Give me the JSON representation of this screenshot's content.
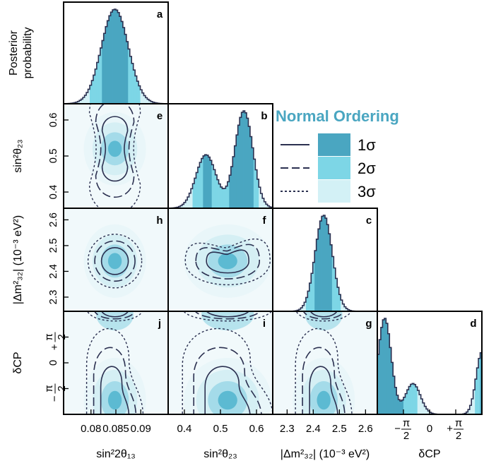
{
  "chart_data": {
    "type": "corner",
    "legend": {
      "title": "Normal Ordering",
      "entries": [
        {
          "label": "1σ",
          "line": "solid",
          "color": "#4aa6c1"
        },
        {
          "label": "2σ",
          "line": "dashed",
          "color": "#7dd6e6"
        },
        {
          "label": "3σ",
          "line": "dotted",
          "color": "#d3f1f6"
        }
      ],
      "placement": "top-right"
    },
    "ylabel_1d": "Posterior probability",
    "parameters": [
      {
        "key": "s13",
        "label": "sin²2θ₁₃",
        "ylabel": "",
        "ticks": [
          0.08,
          0.085,
          0.09
        ],
        "tick_labels": [
          "0.08",
          "0.085",
          "0.09"
        ],
        "range": [
          0.0745,
          0.0955
        ]
      },
      {
        "key": "s23",
        "label": "sin²θ₂₃",
        "ylabel": "sin²θ₂₃",
        "ticks": [
          0.4,
          0.5,
          0.6
        ],
        "tick_labels": [
          "0.4",
          "0.5",
          "0.6"
        ],
        "range": [
          0.355,
          0.645
        ]
      },
      {
        "key": "dm",
        "label": "|Δm²₃₂| (10⁻³ eV²)",
        "ylabel": "|Δm²₃₂| (10⁻³ eV²)",
        "ticks": [
          2.3,
          2.4,
          2.5,
          2.6
        ],
        "tick_labels": [
          "2.3",
          "2.4",
          "2.5",
          "2.6"
        ],
        "range": [
          2.245,
          2.645
        ]
      },
      {
        "key": "dcp",
        "label": "δCP",
        "ylabel": "δCP",
        "ticks": [
          -1.5708,
          0,
          1.5708
        ],
        "tick_labels": [
          "−π/2",
          "0",
          "+π/2"
        ],
        "range": [
          -3.1416,
          3.1416
        ]
      }
    ],
    "panels_1d": [
      {
        "label": "a",
        "param": "s13",
        "mean": 0.0848,
        "sigma": 0.0027,
        "interval_1s": [
          0.0822,
          0.0874
        ],
        "interval_2s": [
          0.0797,
          0.0899
        ]
      },
      {
        "label": "b",
        "param": "s23",
        "bimodal": [
          {
            "mu": 0.46,
            "sd": 0.028,
            "w": 0.55
          },
          {
            "mu": 0.565,
            "sd": 0.025,
            "w": 1.0
          }
        ],
        "interval_1s": [
          [
            0.45,
            0.477
          ],
          [
            0.522,
            0.592
          ]
        ],
        "interval_2s": [
          0.425,
          0.605
        ]
      },
      {
        "label": "c",
        "param": "dm",
        "mean": 2.44,
        "sigma": 0.033,
        "interval_1s": [
          2.407,
          2.473
        ],
        "interval_2s": [
          2.375,
          2.505
        ]
      },
      {
        "label": "d",
        "param": "dcp",
        "modes": [
          {
            "mu": -2.7,
            "sd": 0.4,
            "w": 1.0
          },
          {
            "mu": -1.0,
            "sd": 0.45,
            "w": 0.32
          },
          {
            "mu": 3.15,
            "sd": 0.35,
            "w": 0.65
          }
        ],
        "interval_1s": [
          [
            -3.1416,
            -1.6
          ],
          [
            3.0,
            3.1416
          ]
        ],
        "interval_2s": [
          [
            -3.1416,
            -0.7
          ],
          [
            2.75,
            3.1416
          ]
        ]
      }
    ],
    "panels_2d": [
      {
        "label": "e",
        "x": "s13",
        "y": "s23",
        "center": [
          0.0848,
          0.52
        ]
      },
      {
        "label": "h",
        "x": "s13",
        "y": "dm",
        "center": [
          0.0848,
          2.44
        ]
      },
      {
        "label": "f",
        "x": "s23",
        "y": "dm",
        "center": [
          0.52,
          2.44
        ]
      },
      {
        "label": "j",
        "x": "s13",
        "y": "dcp",
        "center": [
          0.0848,
          -2.3
        ]
      },
      {
        "label": "i",
        "x": "s23",
        "y": "dcp",
        "center": [
          0.52,
          -2.3
        ]
      },
      {
        "label": "g",
        "x": "dm",
        "y": "dcp",
        "center": [
          2.44,
          -2.3
        ]
      }
    ]
  }
}
